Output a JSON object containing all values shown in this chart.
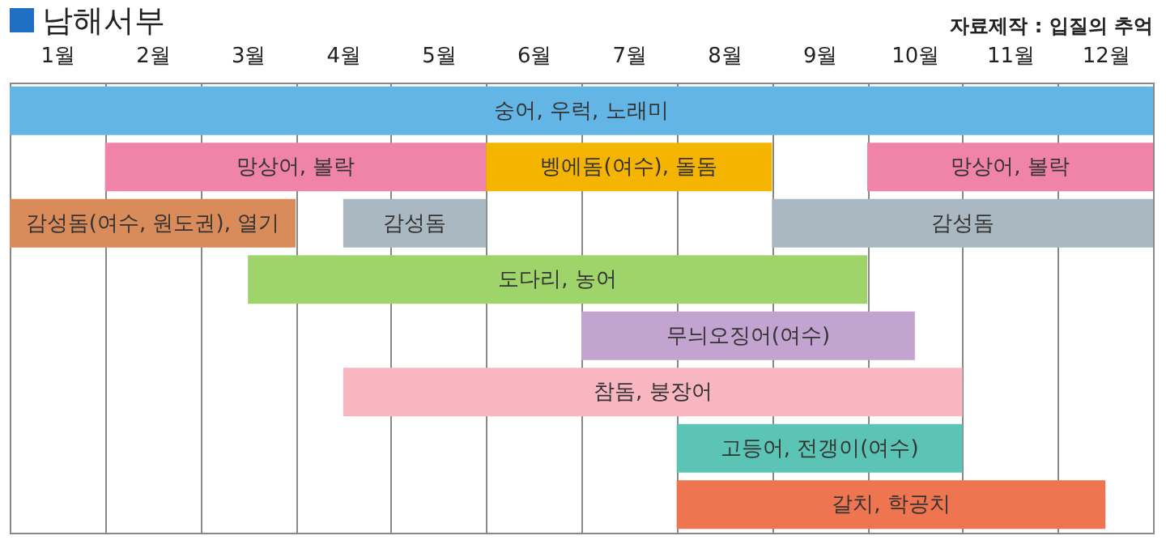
{
  "chart_data": {
    "type": "bar",
    "orientation": "horizontal",
    "title": "남해서부",
    "annotations": [
      "자료제작 : 입질의 추억"
    ],
    "categories": [
      null,
      null,
      null,
      null,
      null,
      null,
      null,
      null
    ],
    "xlim": [
      0,
      12
    ],
    "xticks": [
      {
        "value": 0,
        "label": null
      },
      {
        "value": 0.5,
        "label": "1월"
      },
      {
        "value": 1,
        "label": null
      },
      {
        "value": 1.5,
        "label": "2월"
      },
      {
        "value": 2,
        "label": null
      },
      {
        "value": 2.5,
        "label": "3월"
      },
      {
        "value": 3,
        "label": null
      },
      {
        "value": 3.5,
        "label": "4월"
      },
      {
        "value": 4,
        "label": null
      },
      {
        "value": 4.5,
        "label": "5월"
      },
      {
        "value": 5,
        "label": null
      },
      {
        "value": 5.5,
        "label": "6월"
      },
      {
        "value": 6,
        "label": null
      },
      {
        "value": 6.5,
        "label": "7월"
      },
      {
        "value": 7,
        "label": null
      },
      {
        "value": 7.5,
        "label": "8월"
      },
      {
        "value": 8,
        "label": null
      },
      {
        "value": 8.5,
        "label": "9월"
      },
      {
        "value": 9,
        "label": null
      },
      {
        "value": 9.5,
        "label": "10월"
      },
      {
        "value": 10,
        "label": null
      },
      {
        "value": 10.5,
        "label": "11월"
      },
      {
        "value": 11,
        "label": null
      },
      {
        "value": 11.5,
        "label": "12월"
      },
      {
        "value": 12,
        "label": null
      }
    ],
    "grid": "x",
    "series": [
      {
        "name": "숭어, 우럭, 노래미",
        "color": "#62b5e5",
        "base": [
          0,
          null,
          null,
          null,
          null,
          null,
          null,
          null
        ],
        "values": [
          12,
          null,
          null,
          null,
          null,
          null,
          null,
          null
        ]
      },
      {
        "name": "망상어, 볼락",
        "color": "#f083a8",
        "base": [
          null,
          1,
          null,
          null,
          null,
          null,
          null,
          null
        ],
        "values": [
          null,
          4,
          null,
          null,
          null,
          null,
          null,
          null
        ]
      },
      {
        "name": "벵에돔(여수), 돌돔",
        "color": "#f5b400",
        "base": [
          null,
          5,
          null,
          null,
          null,
          null,
          null,
          null
        ],
        "values": [
          null,
          3,
          null,
          null,
          null,
          null,
          null,
          null
        ]
      },
      {
        "name": "망상어, 볼락",
        "color": "#f083a8",
        "base": [
          null,
          9,
          null,
          null,
          null,
          null,
          null,
          null
        ],
        "values": [
          null,
          3,
          null,
          null,
          null,
          null,
          null,
          null
        ]
      },
      {
        "name": "감성돔(여수, 원도권), 열기",
        "color": "#d98b5a",
        "base": [
          null,
          null,
          0,
          null,
          null,
          null,
          null,
          null
        ],
        "values": [
          null,
          null,
          3,
          null,
          null,
          null,
          null,
          null
        ]
      },
      {
        "name": "감성돔",
        "color": "#aab8c2",
        "base": [
          null,
          null,
          3.5,
          null,
          null,
          null,
          null,
          null
        ],
        "values": [
          null,
          null,
          1.5,
          null,
          null,
          null,
          null,
          null
        ]
      },
      {
        "name": "감성돔",
        "color": "#aab8c2",
        "base": [
          null,
          null,
          8,
          null,
          null,
          null,
          null,
          null
        ],
        "values": [
          null,
          null,
          4,
          null,
          null,
          null,
          null,
          null
        ]
      },
      {
        "name": "도다리, 농어",
        "color": "#9fd46a",
        "base": [
          null,
          null,
          null,
          2.5,
          null,
          null,
          null,
          null
        ],
        "values": [
          null,
          null,
          null,
          6.5,
          null,
          null,
          null,
          null
        ]
      },
      {
        "name": "무늬오징어(여수)",
        "color": "#c3a3cf",
        "base": [
          null,
          null,
          null,
          null,
          6,
          null,
          null,
          null
        ],
        "values": [
          null,
          null,
          null,
          null,
          3.5,
          null,
          null,
          null
        ]
      },
      {
        "name": "참돔, 붕장어",
        "color": "#f7b6c0",
        "base": [
          null,
          null,
          null,
          null,
          null,
          3.5,
          null,
          null
        ],
        "values": [
          null,
          null,
          null,
          null,
          null,
          6.5,
          null,
          null
        ]
      },
      {
        "name": "고등어, 전갱이(여수)",
        "color": "#5cc4b4",
        "base": [
          null,
          null,
          null,
          null,
          null,
          null,
          7,
          null
        ],
        "values": [
          null,
          null,
          null,
          null,
          null,
          null,
          3,
          null
        ]
      },
      {
        "name": "갈치, 학공치",
        "color": "#ee7550",
        "base": [
          null,
          null,
          null,
          null,
          null,
          null,
          null,
          7
        ],
        "values": [
          null,
          null,
          null,
          null,
          null,
          null,
          null,
          4.5
        ]
      }
    ]
  }
}
